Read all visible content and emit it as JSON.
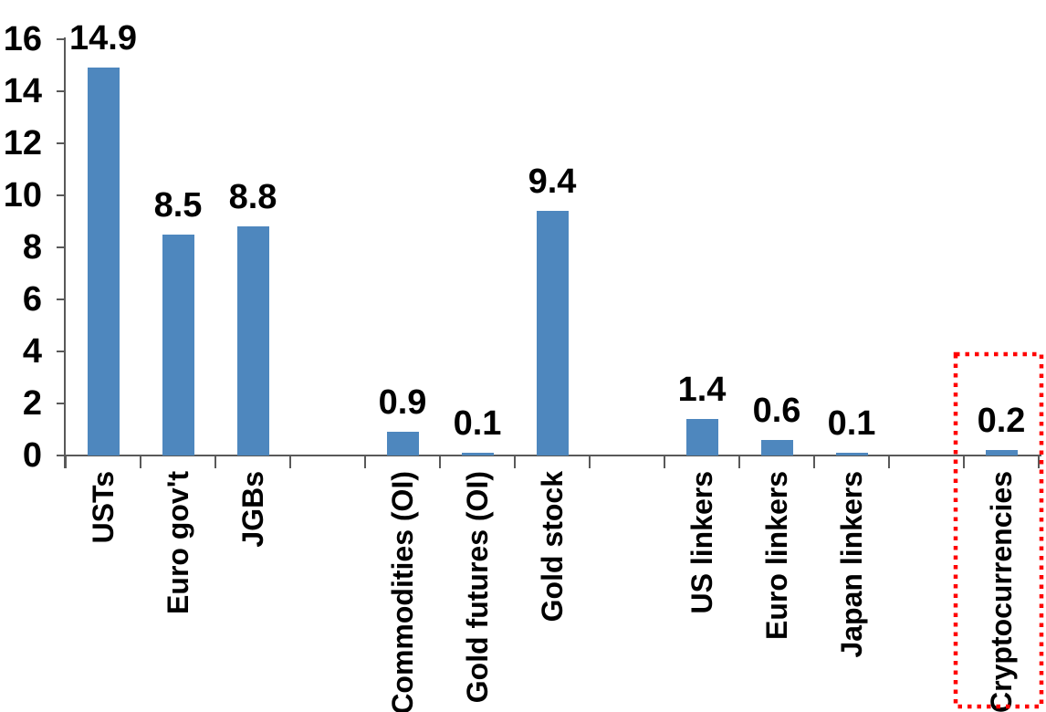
{
  "chart_data": {
    "type": "bar",
    "title": "",
    "xlabel": "",
    "ylabel": "",
    "categories": [
      "USTs",
      "Euro gov't",
      "JGBs",
      "",
      "Commodities (OI)",
      "Gold futures (OI)",
      "Gold stock",
      "",
      "US linkers",
      "Euro linkers",
      "Japan linkers",
      "",
      "Cryptocurrencies"
    ],
    "values": [
      14.9,
      8.5,
      8.8,
      null,
      0.9,
      0.1,
      9.4,
      null,
      1.4,
      0.6,
      0.1,
      null,
      0.2
    ],
    "data_labels": [
      "14.9",
      "8.5",
      "8.8",
      null,
      "0.9",
      "0.1",
      "9.4",
      null,
      "1.4",
      "0.6",
      "0.1",
      null,
      "0.2"
    ],
    "ytick_labels": [
      "0",
      "2",
      "4",
      "6",
      "8",
      "10",
      "12",
      "14",
      "16"
    ],
    "ytick_values": [
      0,
      2,
      4,
      6,
      8,
      10,
      12,
      14,
      16
    ],
    "ylim": [
      0,
      16
    ],
    "grid": false,
    "legend": "none",
    "bar_color": "#4E87BE",
    "axis_color": "#595959",
    "text_color": "#000000",
    "highlight": {
      "category": "Cryptocurrencies",
      "style": "dotted-box",
      "color": "#FF0000"
    }
  }
}
